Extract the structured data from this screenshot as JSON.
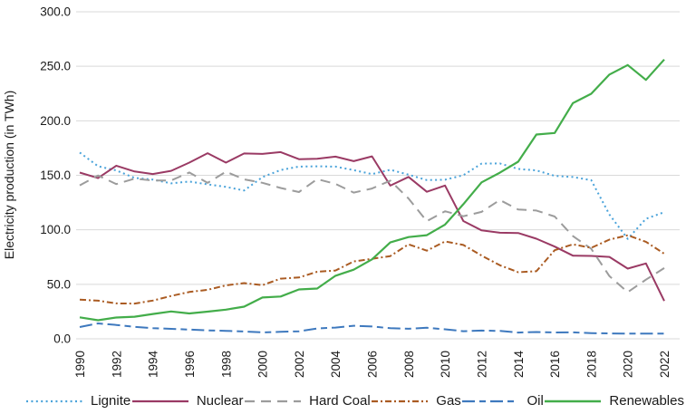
{
  "chart_data": {
    "type": "line",
    "title": "",
    "xlabel": "",
    "ylabel": "Electricity production (in TWh)",
    "ylim": [
      0,
      300
    ],
    "grid": "horizontal",
    "gridline_color": "#d9d9d9",
    "legend_position": "bottom",
    "yticks": [
      "0.0",
      "50.0",
      "100.0",
      "150.0",
      "200.0",
      "250.0",
      "300.0"
    ],
    "xticks": [
      "1990",
      "1992",
      "1994",
      "1996",
      "1998",
      "2000",
      "2002",
      "2004",
      "2006",
      "2008",
      "2010",
      "2012",
      "2014",
      "2016",
      "2018",
      "2020",
      "2022"
    ],
    "x": [
      1990,
      1991,
      1992,
      1993,
      1994,
      1995,
      1996,
      1997,
      1998,
      1999,
      2000,
      2001,
      2002,
      2003,
      2004,
      2005,
      2006,
      2007,
      2008,
      2009,
      2010,
      2011,
      2012,
      2013,
      2014,
      2015,
      2016,
      2017,
      2018,
      2019,
      2020,
      2021,
      2022
    ],
    "series": [
      {
        "name": "Lignite",
        "color": "#4aa3da",
        "dash": "2 3.4",
        "width": 2,
        "values": [
          170.9,
          158.3,
          154.5,
          147.6,
          146.1,
          142.6,
          144.3,
          141.7,
          139.4,
          136.0,
          148.3,
          154.8,
          158.0,
          158.2,
          158.0,
          154.7,
          151.1,
          155.1,
          150.6,
          145.6,
          145.9,
          150.1,
          160.7,
          160.9,
          155.8,
          154.5,
          149.5,
          148.4,
          145.5,
          114.0,
          91.7,
          110.1,
          116.2
        ]
      },
      {
        "name": "Nuclear",
        "color": "#9a3a64",
        "dash": "",
        "width": 2,
        "values": [
          152.5,
          147.4,
          158.8,
          153.5,
          151.2,
          154.1,
          161.6,
          170.3,
          161.6,
          170.0,
          169.6,
          171.3,
          164.8,
          165.1,
          167.1,
          163.0,
          167.4,
          140.5,
          148.5,
          134.9,
          140.6,
          108.0,
          99.5,
          97.3,
          97.1,
          91.8,
          84.6,
          76.3,
          76.0,
          75.1,
          64.4,
          69.1,
          34.7
        ]
      },
      {
        "name": "Hard Coal",
        "color": "#9c9c9c",
        "dash": "11 7",
        "width": 2,
        "values": [
          140.8,
          149.8,
          141.9,
          146.9,
          145.2,
          145.3,
          152.6,
          143.0,
          153.3,
          146.3,
          143.1,
          138.4,
          134.6,
          146.5,
          142.1,
          134.1,
          137.9,
          145.1,
          128.7,
          107.9,
          117.0,
          112.4,
          116.4,
          127.3,
          118.6,
          117.7,
          112.2,
          94.2,
          82.6,
          57.5,
          42.8,
          54.3,
          64.9
        ]
      },
      {
        "name": "Gas",
        "color": "#aa5b22",
        "dash": "7 3 2 3",
        "width": 2,
        "values": [
          35.9,
          35.0,
          32.5,
          32.3,
          35.1,
          39.3,
          43.0,
          45.0,
          49.0,
          51.1,
          49.2,
          55.2,
          56.3,
          61.5,
          62.7,
          71.0,
          73.4,
          75.9,
          86.7,
          80.9,
          89.3,
          86.1,
          76.4,
          67.5,
          61.1,
          62.0,
          81.3,
          86.7,
          83.4,
          91.0,
          95.0,
          89.0,
          78.0
        ]
      },
      {
        "name": "Oil",
        "color": "#3e79be",
        "dash": "14 5 7 5",
        "width": 2,
        "values": [
          10.8,
          14.1,
          12.7,
          11.0,
          9.8,
          9.1,
          8.5,
          7.7,
          7.3,
          6.7,
          5.9,
          6.4,
          6.9,
          9.5,
          10.3,
          12.0,
          11.3,
          9.7,
          9.2,
          10.1,
          8.7,
          7.0,
          7.6,
          7.2,
          5.7,
          6.2,
          5.8,
          5.9,
          5.2,
          4.9,
          4.7,
          4.8,
          4.8
        ]
      },
      {
        "name": "Renewables",
        "color": "#43ad4a",
        "dash": "",
        "width": 2.2,
        "values": [
          19.7,
          17.0,
          19.5,
          20.3,
          22.8,
          25.1,
          23.3,
          24.9,
          26.8,
          29.5,
          37.9,
          38.8,
          45.3,
          46.1,
          57.8,
          63.4,
          72.9,
          88.4,
          93.3,
          95.1,
          104.8,
          123.5,
          143.5,
          152.4,
          162.5,
          187.4,
          188.8,
          216.2,
          224.8,
          242.4,
          251.1,
          237.5,
          256.2
        ]
      }
    ]
  }
}
